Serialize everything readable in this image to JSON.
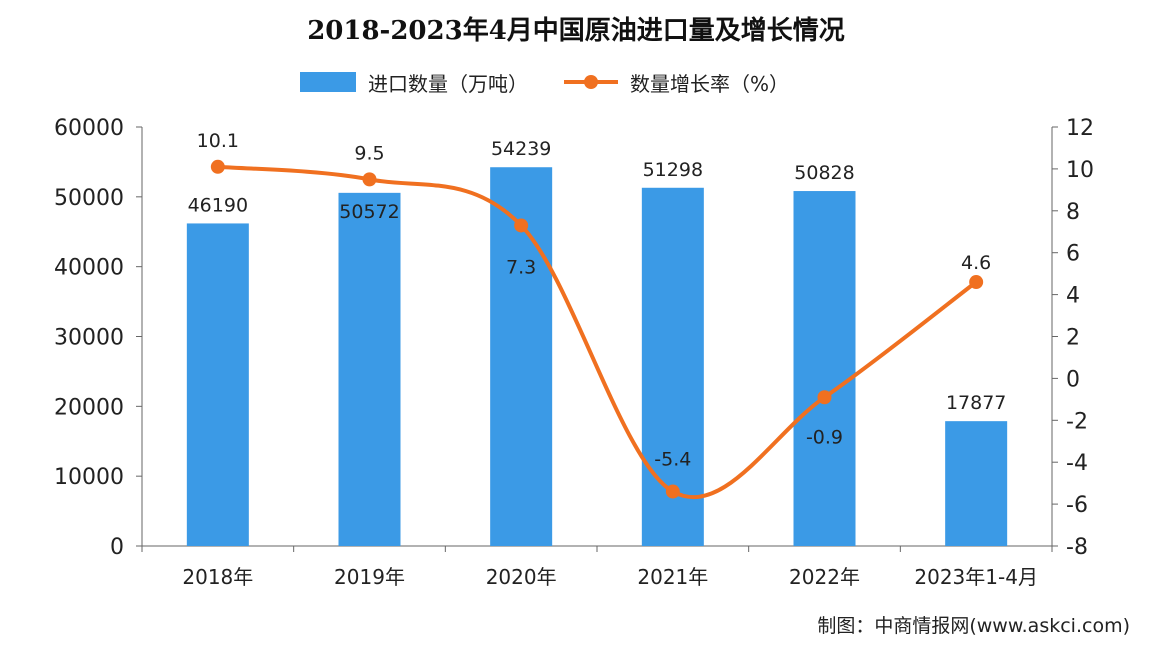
{
  "title": "2018-2023年4月中国原油进口量及增长情况",
  "legend": {
    "bar_label": "进口数量（万吨）",
    "line_label": "数量增长率（%）"
  },
  "footer": "制图：中商情报网(www.askci.com)",
  "colors": {
    "bar": "#3b9ae6",
    "line": "#f07020",
    "axis": "#666666",
    "text": "#222222"
  },
  "chart_data": {
    "type": "bar",
    "categories": [
      "2018年",
      "2019年",
      "2020年",
      "2021年",
      "2022年",
      "2023年1-4月"
    ],
    "series": [
      {
        "name": "进口数量（万吨）",
        "type": "bar",
        "axis": "left",
        "values": [
          46190,
          50572,
          54239,
          51298,
          50828,
          17877
        ]
      },
      {
        "name": "数量增长率（%）",
        "type": "line",
        "axis": "right",
        "values": [
          10.1,
          9.5,
          7.3,
          -5.4,
          -0.9,
          4.6
        ]
      }
    ],
    "bar_labels": [
      "46190",
      "50572",
      "54239",
      "51298",
      "50828",
      "17877"
    ],
    "line_labels": [
      "10.1",
      "9.5",
      "7.3",
      "-5.4",
      "-0.9",
      "4.6"
    ],
    "ylim_left": [
      0,
      60000
    ],
    "ylim_right": [
      -8,
      12
    ],
    "yticks_left": [
      0,
      10000,
      20000,
      30000,
      40000,
      50000,
      60000
    ],
    "yticks_right": [
      -8,
      -6,
      -4,
      -2,
      0,
      2,
      4,
      6,
      8,
      10,
      12
    ],
    "grid": false,
    "legend_position": "top-center"
  }
}
